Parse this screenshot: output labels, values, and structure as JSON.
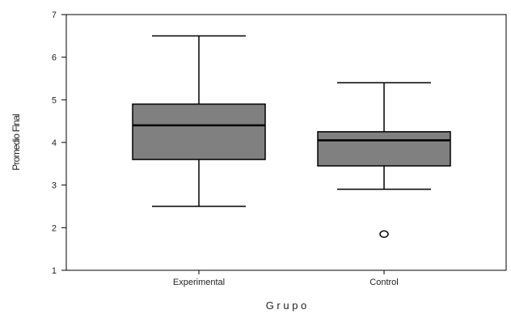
{
  "chart_data": {
    "type": "boxplot",
    "xlabel": "G r u p o",
    "ylabel": "Promedio Final",
    "ylim": [
      1,
      7
    ],
    "yticks": [
      "1",
      "2",
      "3",
      "4",
      "5",
      "6",
      "7"
    ],
    "categories": [
      "Experimental",
      "Control"
    ],
    "boxes": [
      {
        "category": "Experimental",
        "whisker_low": 2.5,
        "q1": 3.6,
        "median": 4.4,
        "q3": 4.9,
        "whisker_high": 6.5,
        "outliers": []
      },
      {
        "category": "Control",
        "whisker_low": 2.9,
        "q1": 3.45,
        "median": 4.05,
        "q3": 4.25,
        "whisker_high": 5.4,
        "outliers": [
          1.85
        ]
      }
    ],
    "grid": false,
    "colors": {
      "box_fill": "#808080",
      "line": "#000000",
      "background": "#ffffff"
    }
  }
}
